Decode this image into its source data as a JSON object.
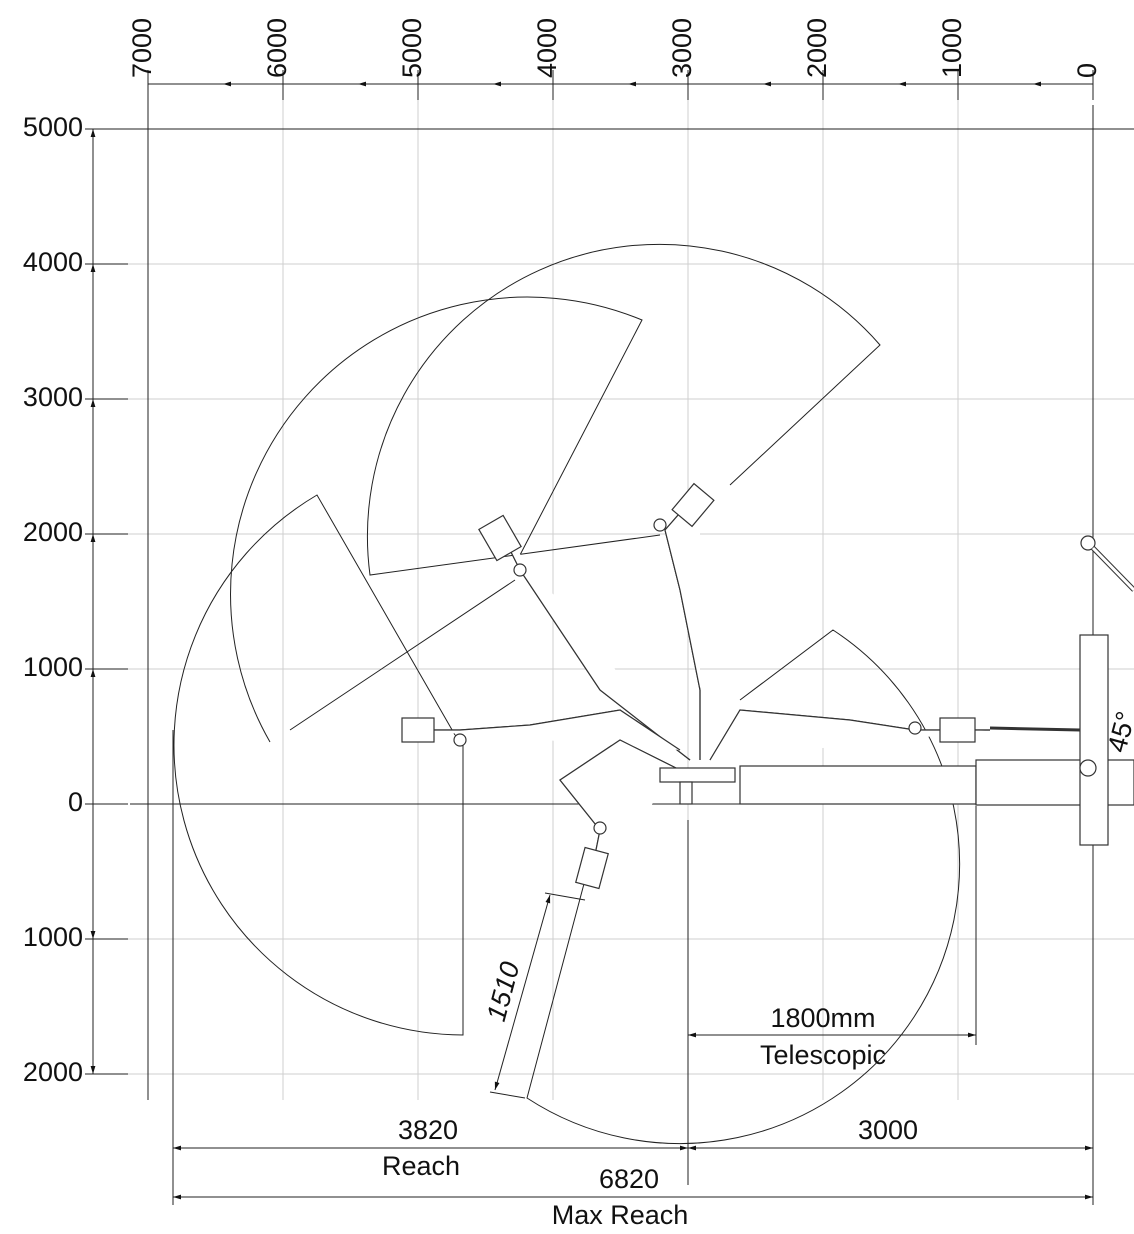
{
  "top_scale": {
    "labels": [
      "7000",
      "6000",
      "5000",
      "4000",
      "3000",
      "2000",
      "1000",
      "0"
    ]
  },
  "left_scale": {
    "labels": [
      "5000",
      "4000",
      "3000",
      "2000",
      "1000",
      "0",
      "1000",
      "2000"
    ]
  },
  "dimensions": {
    "reach": {
      "value": "3820",
      "caption": "Reach"
    },
    "offset": {
      "value": "3000"
    },
    "max_reach": {
      "value": "6820",
      "caption": "Max Reach"
    },
    "telescopic": {
      "value": "1800mm",
      "caption": "Telescopic"
    },
    "arm_length": {
      "value": "1510"
    },
    "angle": {
      "value": "45°"
    }
  }
}
